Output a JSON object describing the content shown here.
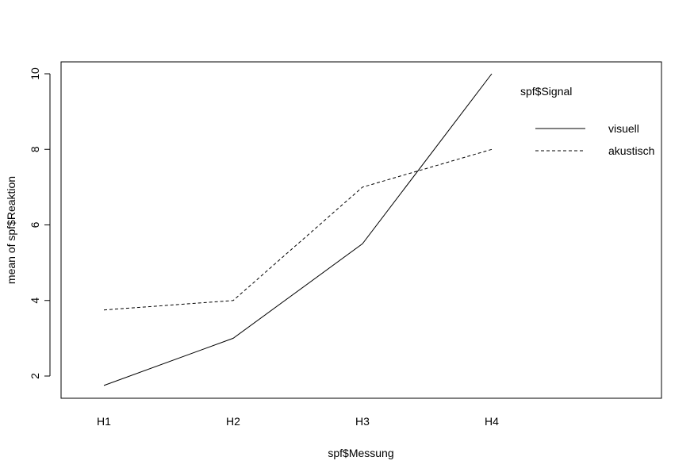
{
  "chart_data": {
    "type": "line",
    "categories": [
      "H1",
      "H2",
      "H3",
      "H4"
    ],
    "series": [
      {
        "name": "visuell",
        "values": [
          1.75,
          3.0,
          5.5,
          10.0
        ],
        "dash": "solid"
      },
      {
        "name": "akustisch",
        "values": [
          3.75,
          4.0,
          7.0,
          8.0
        ],
        "dash": "dashed"
      }
    ],
    "xlabel": "spf$Messung",
    "ylabel": "mean of  spf$Reaktion",
    "yticks": [
      2,
      4,
      6,
      8,
      10
    ],
    "ylim": [
      1.4,
      10.3
    ],
    "legend": {
      "title": "spf$Signal",
      "placement": "top-right"
    },
    "grid": false,
    "colors": {
      "line": "#000000",
      "background": "#ffffff"
    }
  }
}
